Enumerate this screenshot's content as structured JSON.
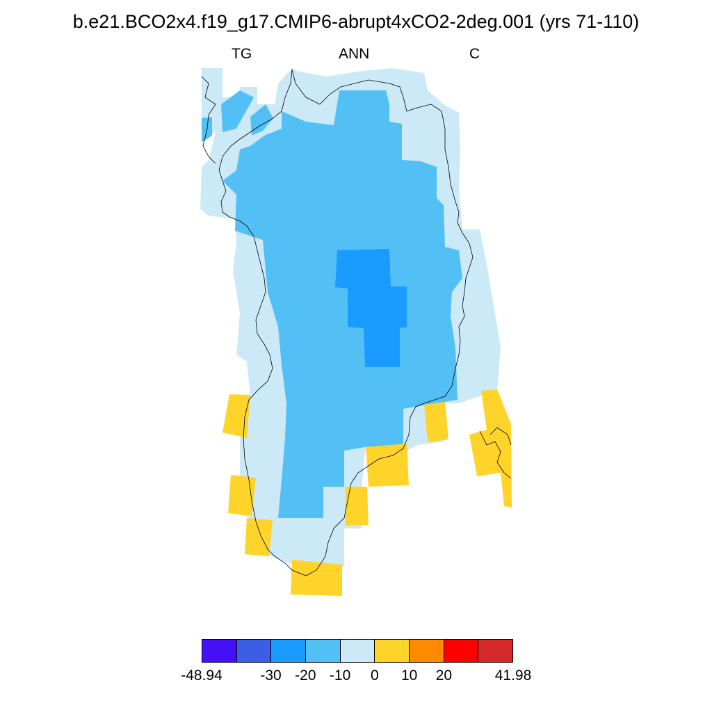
{
  "title": "b.e21.BCO2x4.f19_g17.CMIP6-abrupt4xCO2-2deg.001 (yrs 71-110)",
  "subtitle": {
    "left": "TG",
    "center": "ANN",
    "right": "C"
  },
  "colorbar": {
    "colors": [
      "#4410f5",
      "#3b5ee6",
      "#1a9bff",
      "#52c0f5",
      "#cce9f8",
      "#ffd42a",
      "#ff8a00",
      "#ff0000",
      "#d62a2a"
    ],
    "labels": [
      "-48.94",
      "-30",
      "-20",
      "-10",
      "0",
      "10",
      "20",
      "41.98"
    ]
  },
  "legend": {
    "levels": [
      "-30 to -20",
      "-20 to -10",
      "-10 to 0",
      "0 to 10"
    ]
  }
}
